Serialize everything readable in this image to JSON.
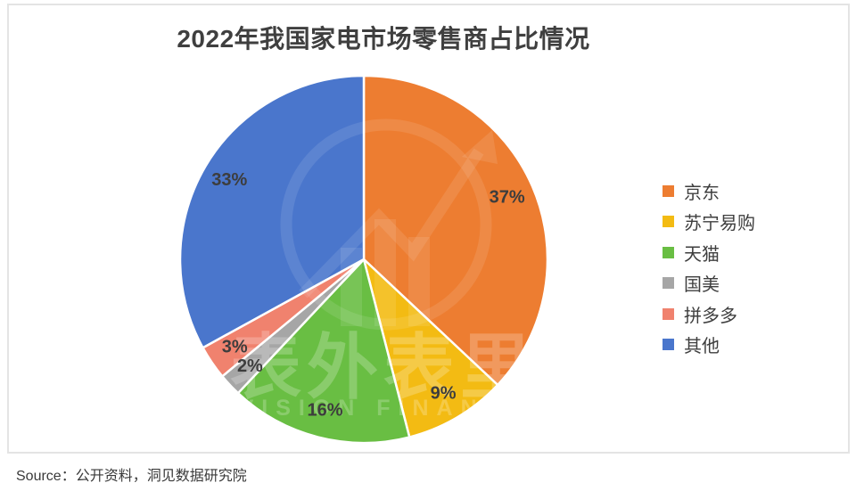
{
  "title": "2022年我国家电市场零售商占比情况",
  "source": {
    "prefix": "Source：",
    "text": "公开资料，洞见数据研究院"
  },
  "watermark": {
    "cn": "表外表里",
    "en": "VISION FINANCE"
  },
  "chart_data": {
    "type": "pie",
    "title": "2022年我国家电市场零售商占比情况",
    "categories": [
      "京东",
      "苏宁易购",
      "天猫",
      "国美",
      "拼多多",
      "其他"
    ],
    "values": [
      37,
      9,
      16,
      2,
      3,
      33
    ],
    "labels": [
      "37%",
      "9%",
      "16%",
      "2%",
      "3%",
      "33%"
    ],
    "unit": "%",
    "colors": [
      "#ED7D31",
      "#F3BB13",
      "#69BE43",
      "#A6A6A6",
      "#F0826E",
      "#4A76CC"
    ],
    "start_angle_deg": 0,
    "direction": "clockwise",
    "legend_position": "right",
    "label_color": "#3d3d3d",
    "separator_color": "#ffffff"
  }
}
